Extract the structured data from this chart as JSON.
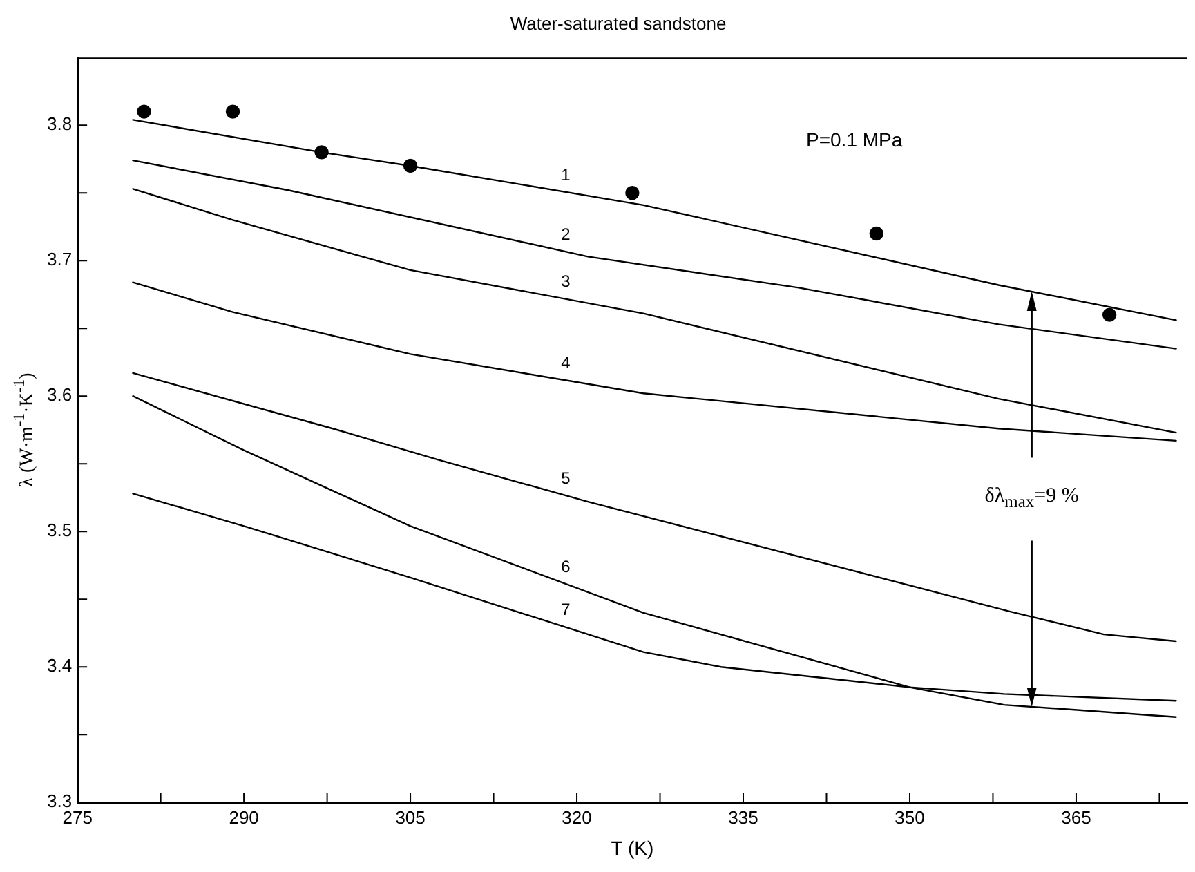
{
  "chart_data": {
    "type": "line",
    "title": "Water-saturated sandstone",
    "xlabel": "T (K)",
    "ylabel": "λ (W·m$^{-1}$·K$^{-1}$)",
    "xlim": [
      275,
      375
    ],
    "ylim": [
      3.3,
      3.85
    ],
    "xticks": [
      275,
      {
        "value": 282.5,
        "label": null
      },
      290,
      {
        "value": 297.5,
        "label": null
      },
      305,
      {
        "value": 312.5,
        "label": null
      },
      320,
      {
        "value": 327.5,
        "label": null
      },
      335,
      {
        "value": 342.5,
        "label": null
      },
      350,
      {
        "value": 357.5,
        "label": null
      },
      365,
      {
        "value": 372.5,
        "label": null
      }
    ],
    "yticks": [
      3.3,
      {
        "value": 3.35,
        "label": null
      },
      3.4,
      {
        "value": 3.45,
        "label": null
      },
      3.5,
      {
        "value": 3.55,
        "label": null
      },
      3.6,
      {
        "value": 3.65,
        "label": null
      },
      3.7,
      {
        "value": 3.75,
        "label": null
      },
      3.8
    ],
    "grid": false,
    "legend": false,
    "marker": "none",
    "line_style": "solid",
    "annotations": [
      "P=0.1 MPa",
      "δλ$_{max}$=9 %"
    ],
    "series": [
      {
        "name": "1",
        "color": "#000000",
        "x": [
          280,
          297,
          305,
          326,
          358,
          374
        ],
        "values": [
          3.804,
          3.78,
          3.77,
          3.741,
          3.682,
          3.656
        ]
      },
      {
        "name": "2",
        "color": "#000000",
        "x": [
          280,
          294,
          321,
          340,
          358,
          374
        ],
        "values": [
          3.774,
          3.752,
          3.703,
          3.68,
          3.653,
          3.635
        ]
      },
      {
        "name": "3",
        "color": "#000000",
        "x": [
          280,
          289,
          305,
          326,
          358,
          374
        ],
        "values": [
          3.753,
          3.73,
          3.693,
          3.661,
          3.598,
          3.573
        ]
      },
      {
        "name": "4",
        "color": "#000000",
        "x": [
          280,
          289,
          305,
          326,
          358,
          374
        ],
        "values": [
          3.684,
          3.662,
          3.631,
          3.602,
          3.576,
          3.567
        ]
      },
      {
        "name": "5",
        "color": "#000000",
        "x": [
          280,
          298,
          307.5,
          321,
          359,
          367.5,
          374
        ],
        "values": [
          3.617,
          3.576,
          3.553,
          3.522,
          3.441,
          3.424,
          3.419
        ]
      },
      {
        "name": "6",
        "color": "#000000",
        "x": [
          280,
          290,
          305,
          326,
          350,
          358.5,
          374
        ],
        "values": [
          3.6,
          3.56,
          3.504,
          3.44,
          3.385,
          3.372,
          3.363
        ]
      },
      {
        "name": "7",
        "color": "#000000",
        "x": [
          280,
          290,
          305,
          326,
          333,
          350,
          358.5,
          374
        ],
        "values": [
          3.528,
          3.504,
          3.466,
          3.411,
          3.4,
          3.385,
          3.38,
          3.375
        ]
      },
      {
        "type": "scatter",
        "marker": "circle",
        "color": "#000000",
        "x": [
          281,
          289,
          297,
          305,
          325,
          347,
          368
        ],
        "values": [
          3.81,
          3.81,
          3.78,
          3.77,
          3.75,
          3.72,
          3.66
        ]
      }
    ]
  }
}
